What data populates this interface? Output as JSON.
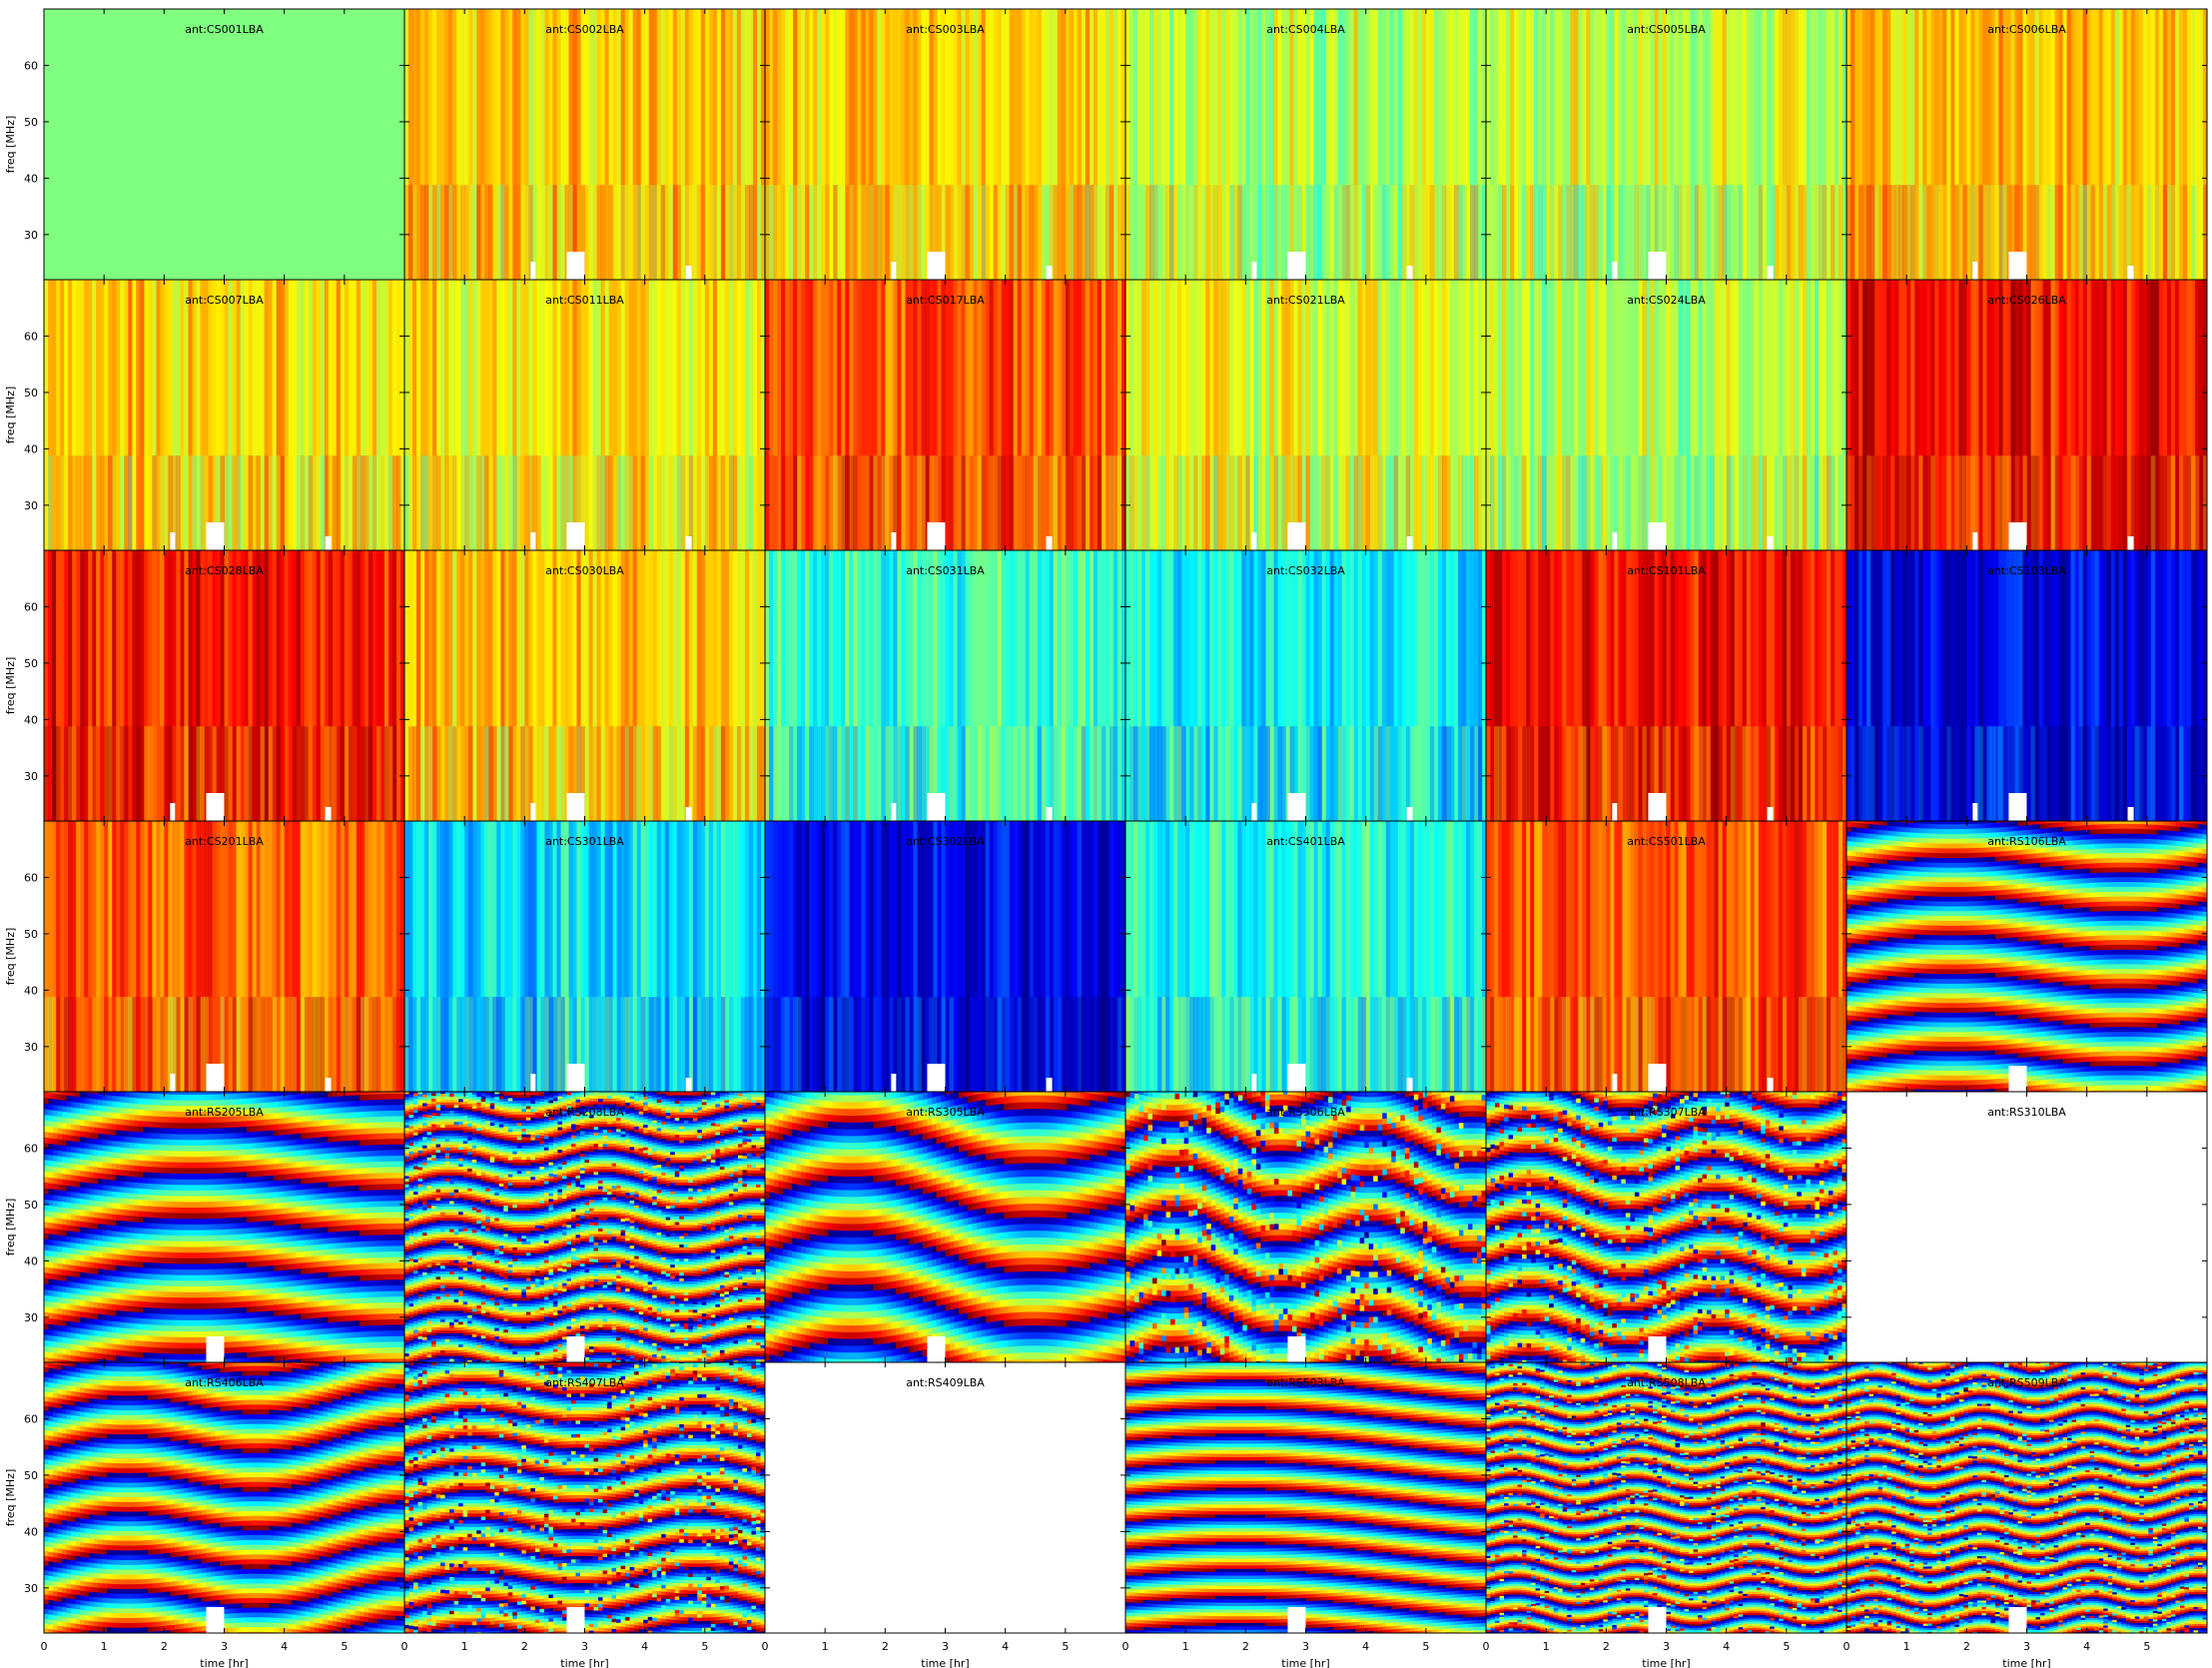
{
  "figure": {
    "rows": 6,
    "cols": 6,
    "ylabel": "freq [MHz]",
    "xlabel": "time [hr]",
    "xticks": [
      0,
      1,
      2,
      3,
      4,
      5
    ],
    "yticks": [
      30,
      40,
      50,
      60
    ]
  },
  "chart_data": {
    "type": "heatmap",
    "colormap": "jet",
    "xlabel": "time [hr]",
    "ylabel": "freq [MHz]",
    "xlim": [
      0,
      6
    ],
    "ylim": [
      22,
      70
    ],
    "grid": false,
    "panels": [
      {
        "title": "ant:CS001LBA",
        "pattern": "flat",
        "level": 0.5
      },
      {
        "title": "ant:CS002LBA",
        "pattern": "smooth",
        "level": 0.68
      },
      {
        "title": "ant:CS003LBA",
        "pattern": "smooth",
        "level": 0.66
      },
      {
        "title": "ant:CS004LBA",
        "pattern": "smooth",
        "level": 0.56
      },
      {
        "title": "ant:CS005LBA",
        "pattern": "smooth",
        "level": 0.57
      },
      {
        "title": "ant:CS006LBA",
        "pattern": "smooth",
        "level": 0.68
      },
      {
        "title": "ant:CS007LBA",
        "pattern": "smooth",
        "level": 0.66
      },
      {
        "title": "ant:CS011LBA",
        "pattern": "smooth",
        "level": 0.64
      },
      {
        "title": "ant:CS017LBA",
        "pattern": "smooth",
        "level": 0.8
      },
      {
        "title": "ant:CS021LBA",
        "pattern": "smooth",
        "level": 0.6
      },
      {
        "title": "ant:CS024LBA",
        "pattern": "smooth",
        "level": 0.55
      },
      {
        "title": "ant:CS026LBA",
        "pattern": "smooth",
        "level": 0.87
      },
      {
        "title": "ant:CS028LBA",
        "pattern": "smooth",
        "level": 0.86
      },
      {
        "title": "ant:CS030LBA",
        "pattern": "smooth",
        "level": 0.68
      },
      {
        "title": "ant:CS031LBA",
        "pattern": "smooth",
        "level": 0.43
      },
      {
        "title": "ant:CS032LBA",
        "pattern": "smooth",
        "level": 0.37
      },
      {
        "title": "ant:CS101LBA",
        "pattern": "smooth",
        "level": 0.87
      },
      {
        "title": "ant:CS103LBA",
        "pattern": "smooth",
        "level": 0.1
      },
      {
        "title": "ant:CS201LBA",
        "pattern": "smooth",
        "level": 0.78
      },
      {
        "title": "ant:CS301LBA",
        "pattern": "smooth",
        "level": 0.35
      },
      {
        "title": "ant:CS302LBA",
        "pattern": "smooth",
        "level": 0.1
      },
      {
        "title": "ant:CS401LBA",
        "pattern": "smooth",
        "level": 0.4
      },
      {
        "title": "ant:CS501LBA",
        "pattern": "smooth",
        "level": 0.8
      },
      {
        "title": "ant:RS106LBA",
        "pattern": "fringe",
        "level": 0.5,
        "fringes": 7,
        "wiggle": 0.6
      },
      {
        "title": "ant:RS205LBA",
        "pattern": "fringe",
        "level": 0.5,
        "fringes": 6,
        "wiggle": 0.5
      },
      {
        "title": "ant:RS208LBA",
        "pattern": "noisy-fringe",
        "level": 0.5,
        "fringes": 12,
        "wiggle": 1.5
      },
      {
        "title": "ant:RS305LBA",
        "pattern": "fringe",
        "level": 0.5,
        "fringes": 5,
        "wiggle": 0.7
      },
      {
        "title": "ant:RS306LBA",
        "pattern": "noisy-fringe",
        "level": 0.5,
        "fringes": 6,
        "wiggle": 1.2
      },
      {
        "title": "ant:RS307LBA",
        "pattern": "noisy-fringe",
        "level": 0.5,
        "fringes": 8,
        "wiggle": 1.3
      },
      {
        "title": "ant:RS310LBA",
        "pattern": "empty",
        "level": 0
      },
      {
        "title": "ant:RS406LBA",
        "pattern": "fringe",
        "level": 0.5,
        "fringes": 7,
        "wiggle": 0.8
      },
      {
        "title": "ant:RS407LBA",
        "pattern": "noisy-fringe",
        "level": 0.5,
        "fringes": 10,
        "wiggle": 1.0
      },
      {
        "title": "ant:RS409LBA",
        "pattern": "empty",
        "level": 0
      },
      {
        "title": "ant:RS503LBA",
        "pattern": "fringe",
        "level": 0.5,
        "fringes": 10,
        "wiggle": 0.4
      },
      {
        "title": "ant:RS508LBA",
        "pattern": "noisy-fringe",
        "level": 0.5,
        "fringes": 16,
        "wiggle": 2.0
      },
      {
        "title": "ant:RS509LBA",
        "pattern": "noisy-fringe",
        "level": 0.5,
        "fringes": 16,
        "wiggle": 2.2
      }
    ]
  }
}
